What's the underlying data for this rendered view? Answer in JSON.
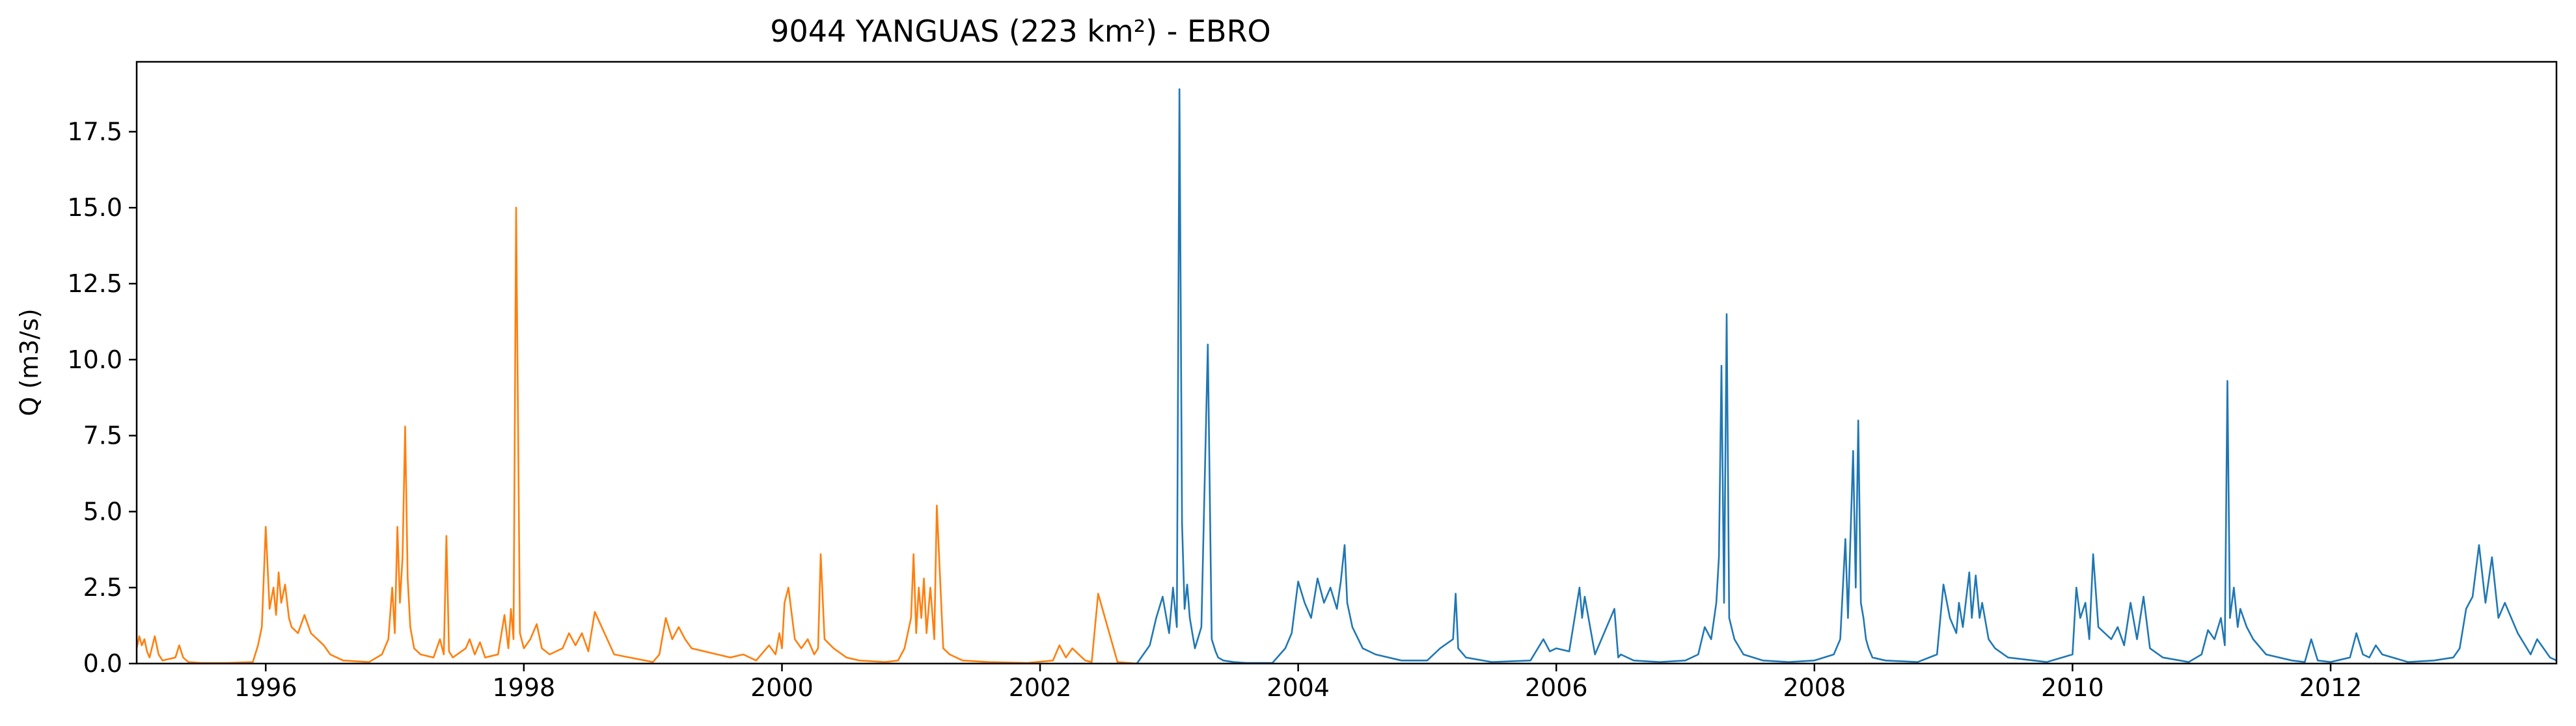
{
  "chart_data": {
    "type": "line",
    "title": "9044 YANGUAS (223 km²) - EBRO",
    "xlabel": "",
    "ylabel": "Q (m3/s)",
    "xlim": [
      1995.0,
      2013.75
    ],
    "ylim": [
      0,
      19.8
    ],
    "grid": false,
    "x_ticks": [
      1996,
      1998,
      2000,
      2002,
      2004,
      2006,
      2008,
      2010,
      2012
    ],
    "x_tick_labels": [
      "1996",
      "1998",
      "2000",
      "2002",
      "2004",
      "2006",
      "2008",
      "2010",
      "2012"
    ],
    "y_ticks": [
      0.0,
      2.5,
      5.0,
      7.5,
      10.0,
      12.5,
      15.0,
      17.5
    ],
    "y_tick_labels": [
      "0.0",
      "2.5",
      "5.0",
      "7.5",
      "10.0",
      "12.5",
      "15.0",
      "17.5"
    ],
    "series": [
      {
        "color": "#ff7f0e",
        "x": [
          1995.0,
          1995.02,
          1995.04,
          1995.06,
          1995.08,
          1995.1,
          1995.14,
          1995.17,
          1995.2,
          1995.3,
          1995.33,
          1995.36,
          1995.4,
          1995.5,
          1995.7,
          1995.9,
          1995.94,
          1995.97,
          1996.0,
          1996.03,
          1996.06,
          1996.08,
          1996.1,
          1996.12,
          1996.15,
          1996.18,
          1996.2,
          1996.25,
          1996.3,
          1996.35,
          1996.4,
          1996.45,
          1996.5,
          1996.6,
          1996.8,
          1996.9,
          1996.95,
          1996.98,
          1997.0,
          1997.02,
          1997.04,
          1997.06,
          1997.08,
          1997.1,
          1997.12,
          1997.15,
          1997.2,
          1997.3,
          1997.35,
          1997.38,
          1997.4,
          1997.42,
          1997.45,
          1997.55,
          1997.58,
          1997.62,
          1997.66,
          1997.7,
          1997.8,
          1997.85,
          1997.88,
          1997.9,
          1997.92,
          1997.94,
          1997.97,
          1998.0,
          1998.05,
          1998.1,
          1998.14,
          1998.2,
          1998.3,
          1998.35,
          1998.4,
          1998.45,
          1998.5,
          1998.55,
          1998.7,
          1999.0,
          1999.05,
          1999.1,
          1999.15,
          1999.2,
          1999.25,
          1999.3,
          1999.4,
          1999.5,
          1999.6,
          1999.7,
          1999.8,
          1999.9,
          1999.95,
          1999.98,
          2000.0,
          2000.02,
          2000.05,
          2000.1,
          2000.15,
          2000.2,
          2000.25,
          2000.28,
          2000.3,
          2000.33,
          2000.4,
          2000.5,
          2000.6,
          2000.8,
          2000.9,
          2000.95,
          2001.0,
          2001.02,
          2001.04,
          2001.06,
          2001.08,
          2001.1,
          2001.12,
          2001.15,
          2001.18,
          2001.2,
          2001.25,
          2001.3,
          2001.4,
          2001.6,
          2001.9,
          2002.1,
          2002.15,
          2002.2,
          2002.25,
          2002.3,
          2002.35,
          2002.4,
          2002.45,
          2002.6,
          2002.75
        ],
        "y": [
          0.5,
          0.9,
          0.6,
          0.8,
          0.4,
          0.2,
          0.9,
          0.3,
          0.1,
          0.2,
          0.6,
          0.2,
          0.05,
          0.02,
          0.02,
          0.05,
          0.6,
          1.2,
          4.5,
          1.8,
          2.5,
          1.6,
          3.0,
          2.0,
          2.6,
          1.5,
          1.2,
          1.0,
          1.6,
          1.0,
          0.8,
          0.6,
          0.3,
          0.1,
          0.05,
          0.3,
          0.8,
          2.5,
          1.0,
          4.5,
          2.0,
          3.5,
          7.8,
          2.8,
          1.2,
          0.5,
          0.3,
          0.2,
          0.8,
          0.3,
          4.2,
          0.4,
          0.2,
          0.5,
          0.8,
          0.3,
          0.7,
          0.2,
          0.3,
          1.6,
          0.5,
          1.8,
          0.8,
          15.0,
          1.0,
          0.5,
          0.8,
          1.3,
          0.5,
          0.3,
          0.5,
          1.0,
          0.6,
          1.0,
          0.4,
          1.7,
          0.3,
          0.05,
          0.3,
          1.5,
          0.8,
          1.2,
          0.8,
          0.5,
          0.4,
          0.3,
          0.2,
          0.3,
          0.1,
          0.6,
          0.3,
          1.0,
          0.5,
          2.0,
          2.5,
          0.8,
          0.5,
          0.8,
          0.3,
          0.5,
          3.6,
          0.8,
          0.5,
          0.2,
          0.1,
          0.05,
          0.1,
          0.5,
          1.5,
          3.6,
          1.0,
          2.5,
          1.5,
          2.8,
          1.0,
          2.5,
          0.8,
          5.2,
          0.5,
          0.3,
          0.1,
          0.05,
          0.02,
          0.1,
          0.6,
          0.2,
          0.5,
          0.3,
          0.1,
          0.05,
          2.3,
          0.05,
          0.0
        ]
      },
      {
        "color": "#1f77b4",
        "x": [
          2002.75,
          2002.8,
          2002.85,
          2002.9,
          2002.95,
          2003.0,
          2003.03,
          2003.06,
          2003.08,
          2003.1,
          2003.12,
          2003.14,
          2003.16,
          2003.18,
          2003.2,
          2003.25,
          2003.3,
          2003.33,
          2003.36,
          2003.38,
          2003.42,
          2003.5,
          2003.6,
          2003.8,
          2003.9,
          2003.95,
          2004.0,
          2004.05,
          2004.1,
          2004.15,
          2004.2,
          2004.25,
          2004.3,
          2004.33,
          2004.36,
          2004.38,
          2004.42,
          2004.5,
          2004.6,
          2004.8,
          2005.0,
          2005.1,
          2005.2,
          2005.22,
          2005.24,
          2005.3,
          2005.5,
          2005.8,
          2005.9,
          2005.95,
          2006.0,
          2006.1,
          2006.18,
          2006.2,
          2006.22,
          2006.3,
          2006.45,
          2006.48,
          2006.5,
          2006.6,
          2006.8,
          2007.0,
          2007.1,
          2007.15,
          2007.2,
          2007.24,
          2007.26,
          2007.28,
          2007.3,
          2007.32,
          2007.34,
          2007.38,
          2007.45,
          2007.6,
          2007.8,
          2008.0,
          2008.15,
          2008.2,
          2008.24,
          2008.26,
          2008.3,
          2008.32,
          2008.34,
          2008.36,
          2008.38,
          2008.4,
          2008.42,
          2008.45,
          2008.55,
          2008.8,
          2008.95,
          2009.0,
          2009.05,
          2009.1,
          2009.12,
          2009.15,
          2009.2,
          2009.22,
          2009.25,
          2009.28,
          2009.3,
          2009.35,
          2009.4,
          2009.5,
          2009.8,
          2010.0,
          2010.03,
          2010.06,
          2010.1,
          2010.13,
          2010.16,
          2010.2,
          2010.3,
          2010.35,
          2010.4,
          2010.45,
          2010.5,
          2010.55,
          2010.6,
          2010.7,
          2010.9,
          2011.0,
          2011.05,
          2011.1,
          2011.15,
          2011.18,
          2011.2,
          2011.22,
          2011.25,
          2011.28,
          2011.3,
          2011.35,
          2011.4,
          2011.5,
          2011.7,
          2011.8,
          2011.85,
          2011.9,
          2012.0,
          2012.15,
          2012.2,
          2012.25,
          2012.3,
          2012.35,
          2012.4,
          2012.6,
          2012.8,
          2012.95,
          2013.0,
          2013.05,
          2013.1,
          2013.15,
          2013.2,
          2013.25,
          2013.3,
          2013.35,
          2013.45,
          2013.55,
          2013.6,
          2013.7,
          2013.75
        ],
        "y": [
          0.0,
          0.3,
          0.6,
          1.5,
          2.2,
          1.0,
          2.5,
          1.2,
          18.9,
          4.6,
          1.8,
          2.6,
          1.5,
          1.0,
          0.5,
          1.2,
          10.5,
          0.8,
          0.4,
          0.2,
          0.1,
          0.05,
          0.02,
          0.02,
          0.5,
          1.0,
          2.7,
          2.0,
          1.5,
          2.8,
          2.0,
          2.5,
          1.8,
          2.7,
          3.9,
          2.0,
          1.2,
          0.5,
          0.3,
          0.1,
          0.1,
          0.5,
          0.8,
          2.3,
          0.5,
          0.2,
          0.05,
          0.1,
          0.8,
          0.4,
          0.5,
          0.4,
          2.5,
          1.5,
          2.2,
          0.3,
          1.8,
          0.2,
          0.3,
          0.1,
          0.05,
          0.1,
          0.3,
          1.2,
          0.8,
          2.0,
          3.5,
          9.8,
          2.0,
          11.5,
          1.5,
          0.8,
          0.3,
          0.1,
          0.05,
          0.1,
          0.3,
          0.8,
          4.1,
          1.5,
          7.0,
          2.5,
          8.0,
          2.0,
          1.5,
          0.8,
          0.5,
          0.2,
          0.1,
          0.05,
          0.3,
          2.6,
          1.5,
          1.0,
          2.0,
          1.2,
          3.0,
          1.5,
          2.9,
          1.5,
          2.0,
          0.8,
          0.5,
          0.2,
          0.05,
          0.3,
          2.5,
          1.5,
          2.0,
          0.8,
          3.6,
          1.2,
          0.8,
          1.2,
          0.6,
          2.0,
          0.8,
          2.2,
          0.5,
          0.2,
          0.05,
          0.3,
          1.1,
          0.8,
          1.5,
          0.6,
          9.3,
          1.5,
          2.5,
          1.2,
          1.8,
          1.2,
          0.8,
          0.3,
          0.1,
          0.05,
          0.8,
          0.1,
          0.05,
          0.2,
          1.0,
          0.3,
          0.2,
          0.6,
          0.3,
          0.05,
          0.1,
          0.2,
          0.5,
          1.8,
          2.2,
          3.9,
          2.0,
          3.5,
          1.5,
          2.0,
          1.0,
          0.3,
          0.8,
          0.2,
          0.1
        ]
      }
    ]
  }
}
